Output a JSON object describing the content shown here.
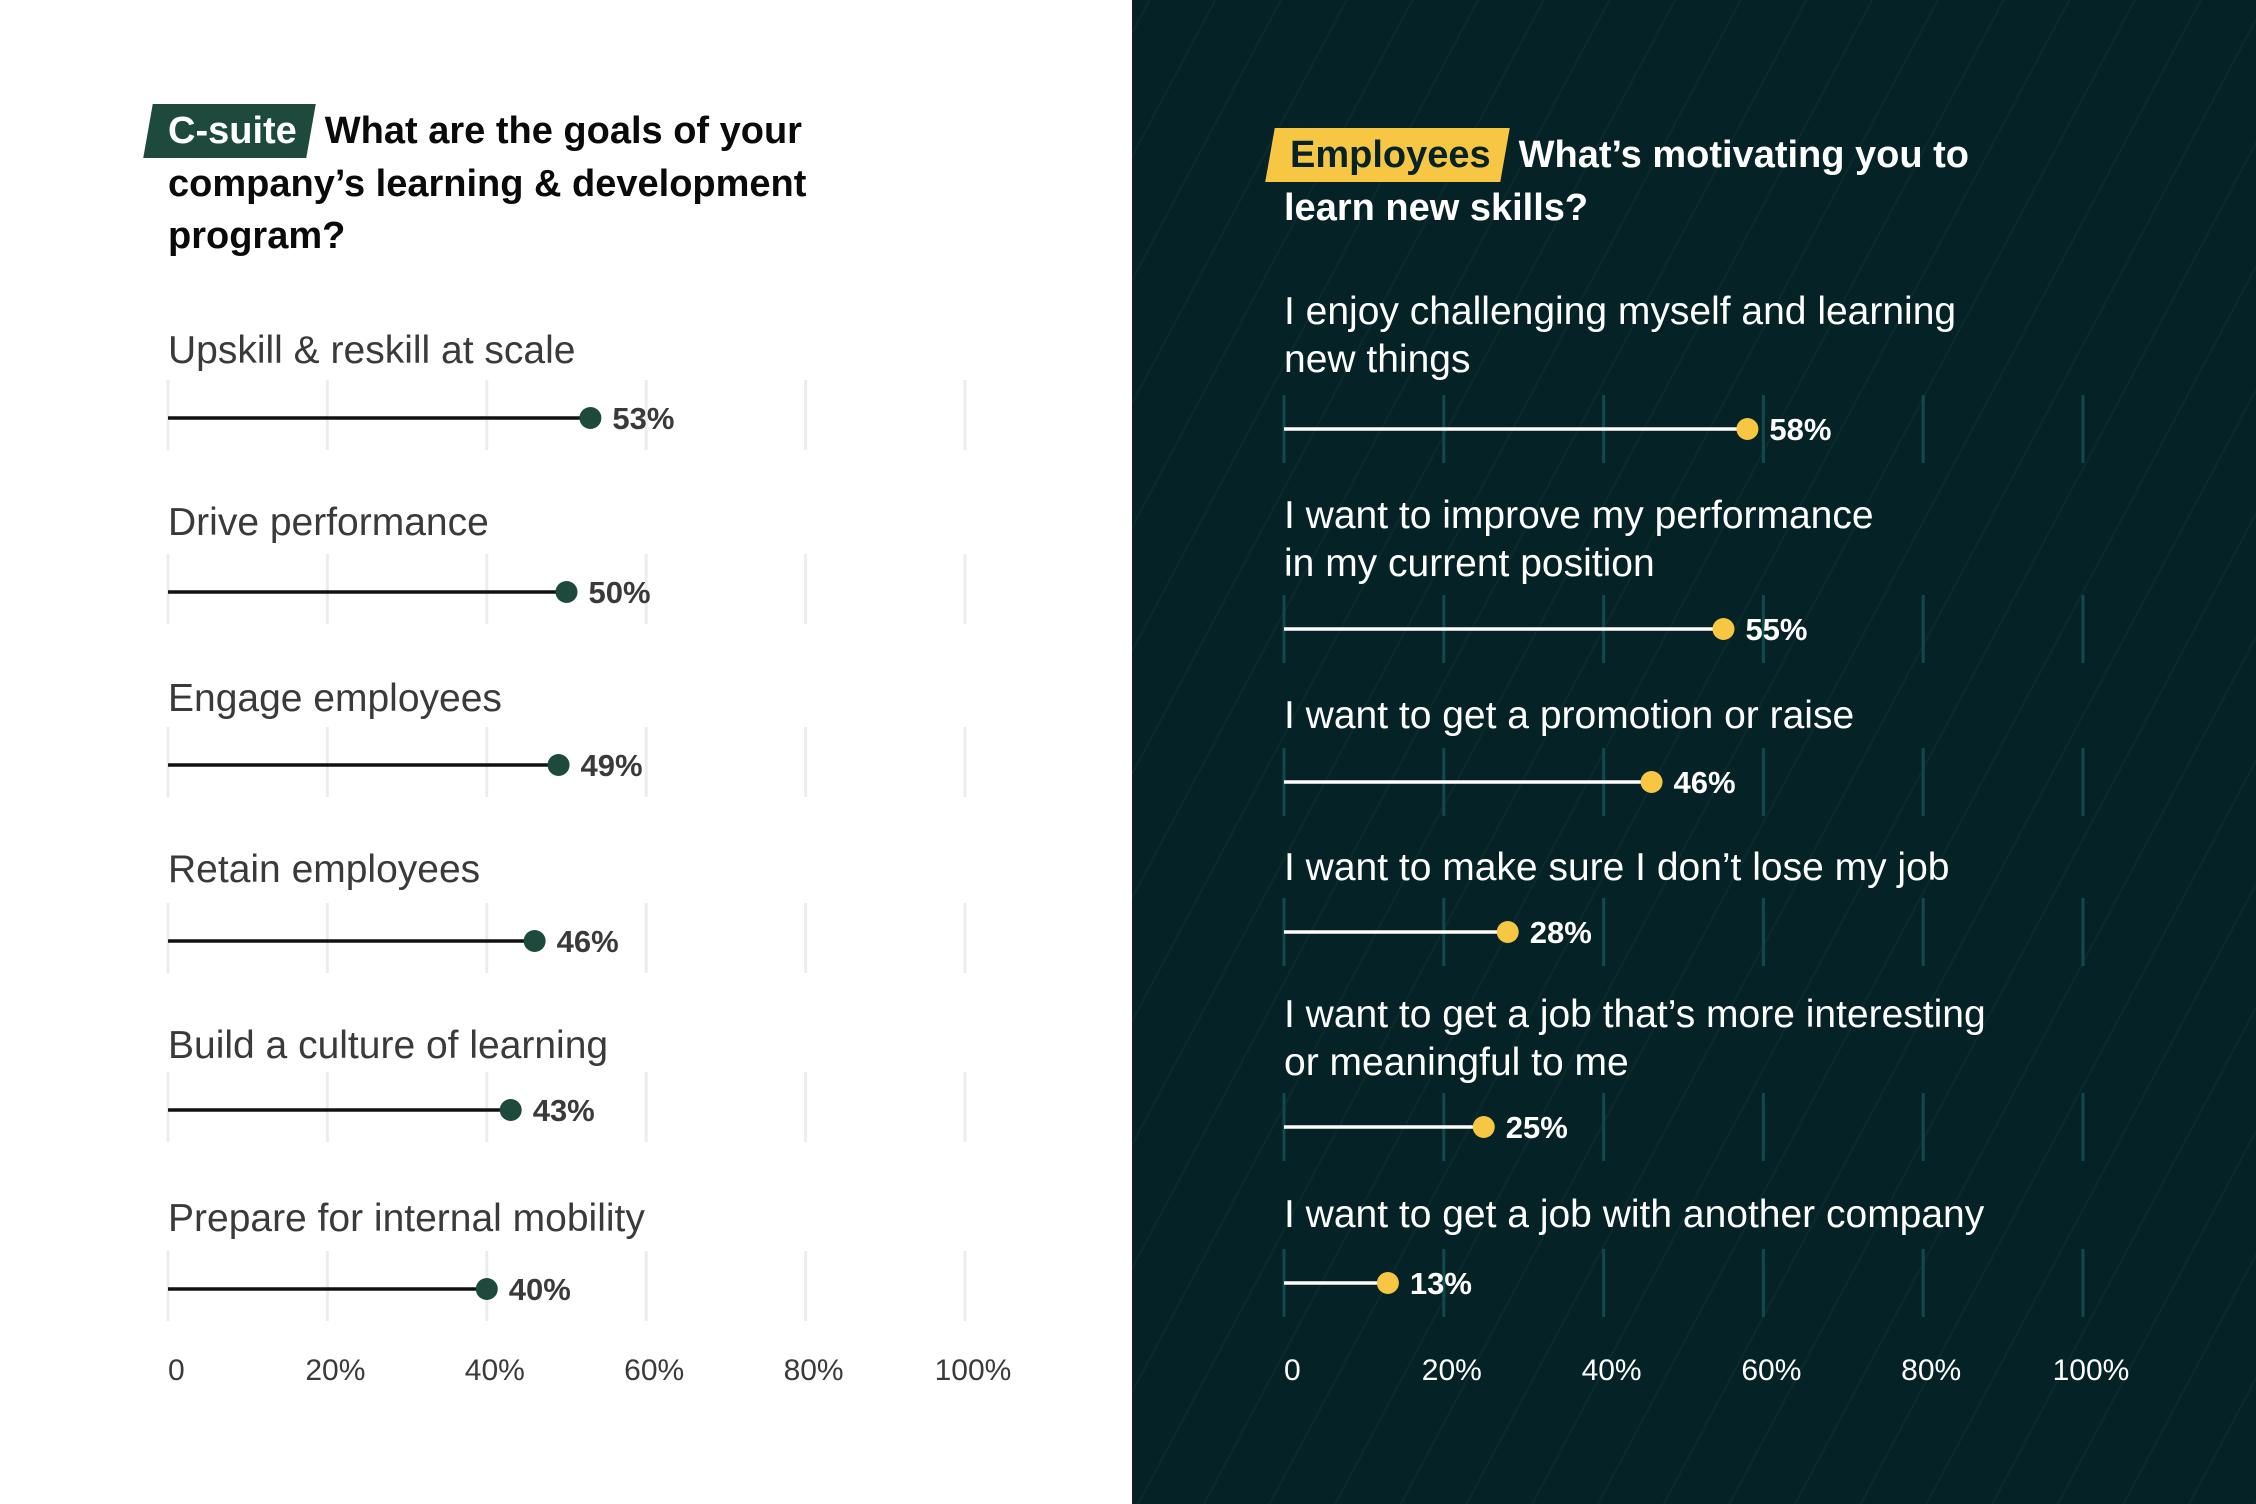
{
  "chart_data": [
    {
      "type": "lollipop",
      "tag": "C-suite",
      "title": "What are the goals of your company’s learning & development program?",
      "categories": [
        "Upskill & reskill at scale",
        "Drive performance",
        "Engage employees",
        "Retain employees",
        "Build a culture of learning",
        "Prepare for internal mobility"
      ],
      "values": [
        53,
        50,
        49,
        46,
        43,
        40
      ],
      "value_labels": [
        "53%",
        "50%",
        "49%",
        "46%",
        "43%",
        "40%"
      ],
      "x_ticks": [
        "0",
        "20%",
        "40%",
        "60%",
        "80%",
        "100%"
      ],
      "xlim": [
        0,
        100
      ],
      "grid": true,
      "colors": {
        "background": "#ffffff",
        "tag_bg": "#1e4a3d",
        "dot": "#1e4a3d",
        "line": "#111111",
        "text": "#3a3a3a",
        "value": "#3a3a3a",
        "grid": "#ececec"
      }
    },
    {
      "type": "lollipop",
      "tag": "Employees",
      "title": "What’s motivating you to learn new skills?",
      "categories": [
        [
          "I enjoy challenging myself and learning",
          "new things"
        ],
        [
          "I want to improve my performance",
          "in my current position"
        ],
        [
          "I want to get a promotion or raise"
        ],
        [
          "I want to make sure I don’t lose my job"
        ],
        [
          "I want to get a job that’s more interesting",
          "or meaningful to me"
        ],
        [
          "I want to get a job with another company"
        ]
      ],
      "values": [
        58,
        55,
        46,
        28,
        25,
        13
      ],
      "value_labels": [
        "58%",
        "55%",
        "46%",
        "28%",
        "25%",
        "13%"
      ],
      "x_ticks": [
        "0",
        "20%",
        "40%",
        "60%",
        "80%",
        "100%"
      ],
      "xlim": [
        0,
        100
      ],
      "grid": true,
      "colors": {
        "background": "#052326",
        "tag_bg": "#f7c744",
        "dot": "#f7c744",
        "line": "#ffffff",
        "text": "#ffffff",
        "value": "#ffffff",
        "grid": "#0f4a4f"
      }
    }
  ]
}
